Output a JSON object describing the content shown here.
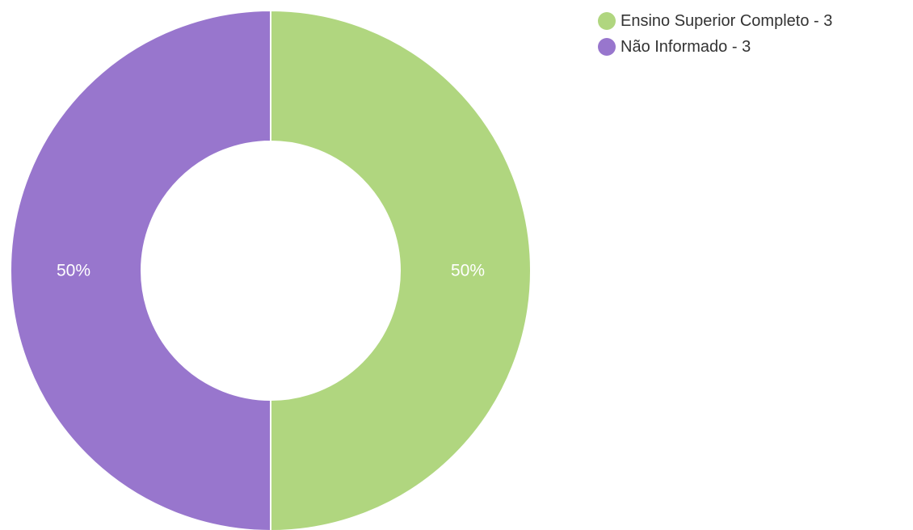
{
  "chart_data": {
    "type": "pie",
    "variant": "donut",
    "title": "",
    "legend": "top-right",
    "series": [
      {
        "name": "Ensino Superior Completo - 3",
        "value": 3,
        "label": "50%",
        "color": "#b0d67f"
      },
      {
        "name": "Não Informado - 3",
        "value": 3,
        "label": "50%",
        "color": "#9876cd"
      }
    ]
  }
}
